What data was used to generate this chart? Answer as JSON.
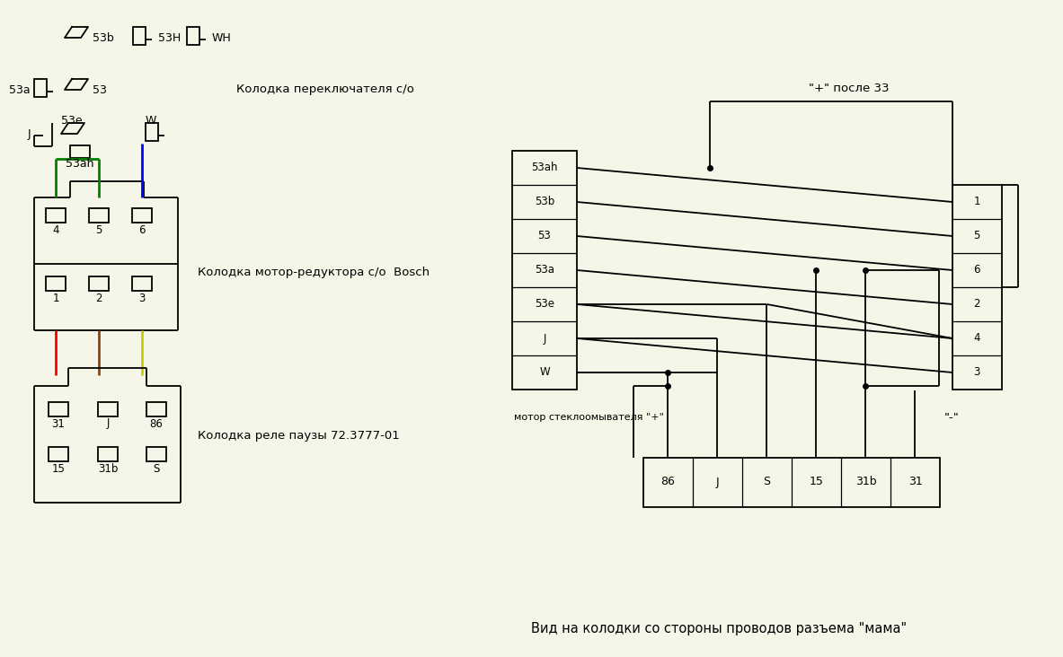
{
  "bg_color": "#f5f5e8",
  "line_color": "#000000",
  "bottom_text": "Вид на колодки со стороны проводов разъема \"мама\"",
  "connector_label1": "Колодка переключателя с/о",
  "connector_label2": "Колодка мотор-редуктора с/о  Bosch",
  "connector_label3": "Колодка реле паузы 72.3777-01",
  "plus_label": "\"+\" после 33",
  "motor_label": "мотор стеклоомывателя \"+\"",
  "minus_label": "\"-\"",
  "left_rows": [
    "53ah",
    "53b",
    "53",
    "53a",
    "53e",
    "J",
    "W"
  ],
  "right_rows": [
    "1",
    "5",
    "6",
    "2",
    "4",
    "3"
  ],
  "bottom_pins": [
    "86",
    "J",
    "S",
    "15",
    "31b",
    "31"
  ],
  "wire5_color": "#8B4513",
  "wire6_color": "#cccc00"
}
